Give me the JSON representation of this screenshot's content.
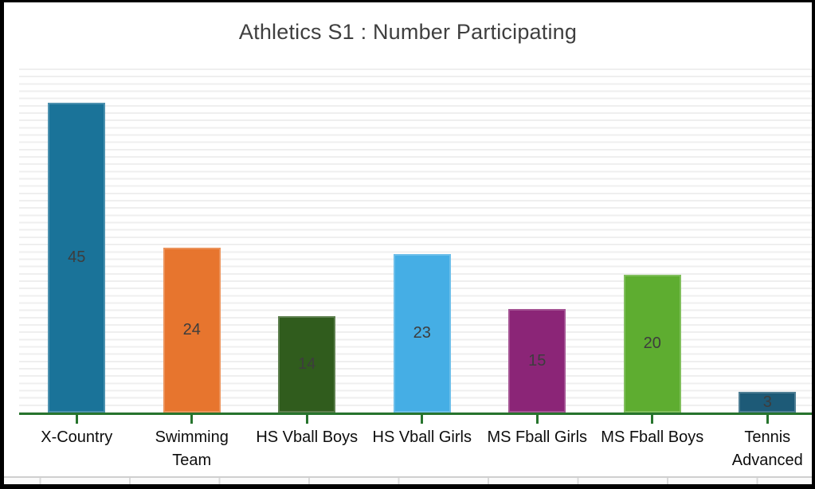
{
  "window": {
    "background_color": "#ffffff",
    "frame_border_color": "#000000"
  },
  "chart_data": {
    "type": "bar",
    "title": "Athletics S1 : Number Participating",
    "categories": [
      "X-Country",
      "Swimming Team",
      "HS Vball Boys",
      "HS Vball Girls",
      "MS Fball Girls",
      "MS Fball Boys",
      "Tennis Advanced"
    ],
    "values": [
      45,
      24,
      14,
      23,
      15,
      20,
      3
    ],
    "bar_colors": [
      "#1a7399",
      "#e7752e",
      "#305c1d",
      "#45aee5",
      "#8b2577",
      "#5ead30",
      "#1d5a77"
    ],
    "xlabel": "",
    "ylabel": "",
    "ylim": [
      0,
      50
    ],
    "grid": "horizontal light-gray lines, no y-axis tick labels",
    "gridline_color": "#efefef",
    "axis_line_color": "#27742d",
    "tick_color": "#27742d",
    "data_label_position": "inside-center",
    "data_label_color": "#3d3d3d",
    "category_label_color": "#0d0d0d",
    "title_color": "#3f3f3f",
    "legend": "none"
  },
  "worksheet_strip": {
    "description": "sliver of spreadsheet cells visible below chart",
    "row_line_color": "#cfcfcf",
    "cell_border_color": "#d9d9d9"
  }
}
